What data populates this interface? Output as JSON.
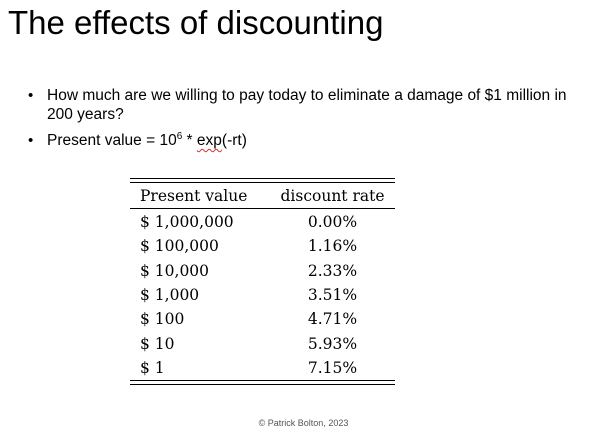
{
  "slide": {
    "title": "The effects of discounting",
    "bullets": [
      {
        "text": "How much are we willing to pay today to eliminate a damage of $1 million in 200 years?"
      },
      {
        "prefix": "Present value = 10",
        "superscript": "6",
        "middle": " * ",
        "underlined": "exp",
        "suffix": "(-rt)"
      }
    ],
    "table": {
      "headers": [
        "Present value",
        "discount rate"
      ],
      "rows": [
        [
          "$ 1,000,000",
          "0.00%"
        ],
        [
          "$ 100,000",
          "1.16%"
        ],
        [
          "$ 10,000",
          "2.33%"
        ],
        [
          "$ 1,000",
          "3.51%"
        ],
        [
          "$ 100",
          "4.71%"
        ],
        [
          "$ 10",
          "5.93%"
        ],
        [
          "$ 1",
          "7.15%"
        ]
      ]
    },
    "footer": "© Patrick Bolton, 2023"
  }
}
